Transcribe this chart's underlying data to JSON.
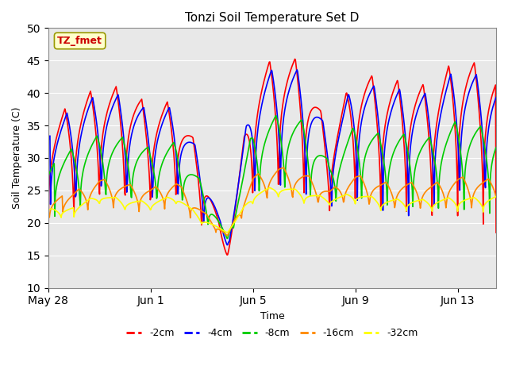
{
  "title": "Tonzi Soil Temperature Set D",
  "xlabel": "Time",
  "ylabel": "Soil Temperature (C)",
  "ylim": [
    10,
    50
  ],
  "xlim_days": [
    0,
    17.5
  ],
  "yticks": [
    10,
    15,
    20,
    25,
    30,
    35,
    40,
    45,
    50
  ],
  "xtick_positions": [
    0,
    4,
    8,
    12,
    16
  ],
  "xtick_labels": [
    "May 28",
    "Jun 1",
    "Jun 5",
    "Jun 9",
    "Jun 13"
  ],
  "annotation_text": "TZ_fmet",
  "annotation_box_color": "#ffffcc",
  "annotation_border_color": "#999900",
  "annotation_text_color": "#cc0000",
  "series": [
    {
      "label": "-2cm",
      "color": "#ff0000",
      "base_amp": 10.0,
      "mean": 20.5,
      "depth_factor": 1.0,
      "phase_lag": 0.0,
      "min_adj": -2.0
    },
    {
      "label": "-4cm",
      "color": "#0000ff",
      "base_amp": 9.5,
      "mean": 21.0,
      "depth_factor": 0.88,
      "phase_lag": 0.08,
      "min_adj": -1.0
    },
    {
      "label": "-8cm",
      "color": "#00cc00",
      "base_amp": 6.0,
      "mean": 21.5,
      "depth_factor": 0.55,
      "phase_lag": 0.25,
      "min_adj": 0.0
    },
    {
      "label": "-16cm",
      "color": "#ff8800",
      "base_amp": 2.5,
      "mean": 22.0,
      "depth_factor": 0.22,
      "phase_lag": 0.55,
      "min_adj": 0.5
    },
    {
      "label": "-32cm",
      "color": "#ffff00",
      "base_amp": 1.0,
      "mean": 22.0,
      "depth_factor": 0.09,
      "phase_lag": 1.0,
      "min_adj": 1.0
    }
  ],
  "background_color": "#e8e8e8",
  "linewidth": 1.2,
  "n_days": 17.5,
  "peak_sharpness": 4.0
}
